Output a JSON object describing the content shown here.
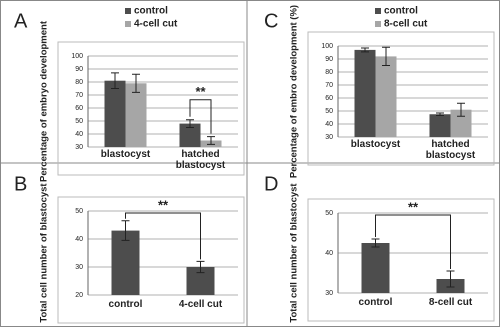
{
  "chart_data": [
    {
      "type": "bar",
      "panel": "A",
      "y_label": "Percentage of embryo development",
      "categories": [
        "blastocyst",
        "hatched blastocyst"
      ],
      "series": [
        {
          "name": "control",
          "color": "#4d4d4d",
          "values": [
            81,
            48
          ],
          "errors": [
            6,
            3
          ]
        },
        {
          "name": "4-cell cut",
          "color": "#a6a6a6",
          "values": [
            79,
            35
          ],
          "errors": [
            7,
            3
          ]
        }
      ],
      "ylim": [
        30,
        100
      ],
      "yticks": [
        30,
        40,
        50,
        60,
        70,
        80,
        90,
        100
      ],
      "grid": true,
      "annotation": "**"
    },
    {
      "type": "bar",
      "panel": "B",
      "y_label": "Total cell number of blastocyst",
      "categories": [
        "control",
        "4-cell cut"
      ],
      "values": [
        43,
        30
      ],
      "errors": [
        3.5,
        2
      ],
      "color": "#4d4d4d",
      "ylim": [
        20,
        50
      ],
      "yticks": [
        20,
        30,
        40,
        50
      ],
      "grid": true,
      "annotation": "**"
    },
    {
      "type": "bar",
      "panel": "C",
      "y_label": "Percentage of embro development (%)",
      "categories": [
        "blastocyst",
        "hatched blastocyst"
      ],
      "series": [
        {
          "name": "control",
          "color": "#4d4d4d",
          "values": [
            97,
            47.5
          ],
          "errors": [
            1.5,
            1
          ]
        },
        {
          "name": "8-cell cut",
          "color": "#a6a6a6",
          "values": [
            92,
            51
          ],
          "errors": [
            7,
            5
          ]
        }
      ],
      "ylim": [
        30,
        100
      ],
      "yticks": [
        30,
        40,
        50,
        60,
        70,
        80,
        90,
        100
      ],
      "grid": true
    },
    {
      "type": "bar",
      "panel": "D",
      "y_label": "Total cell number of blastocyst",
      "categories": [
        "control",
        "8-cell cut"
      ],
      "values": [
        42.5,
        33.5
      ],
      "errors": [
        1,
        2
      ],
      "color": "#4d4d4d",
      "ylim": [
        30,
        50
      ],
      "yticks": [
        30,
        40,
        50
      ],
      "grid": true,
      "annotation": "**"
    }
  ]
}
